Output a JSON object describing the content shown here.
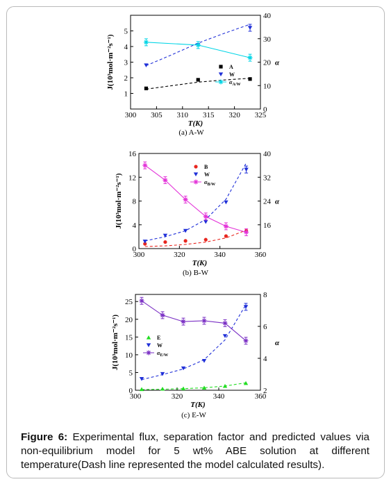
{
  "caption": {
    "label": "Figure 6:",
    "text": "Experimental flux, separation factor and predicted values via non-equilibrium model for 5 wt% ABE solution at different temperature(Dash line represented the model calculated results)."
  },
  "chart_data": [
    {
      "type": "line",
      "subtitle": "(a) A-W",
      "xlabel": "T(K)",
      "ylabel": "J(10³mol·m⁻²s⁻¹)",
      "y2label": "α",
      "xlim": [
        300,
        325
      ],
      "ylim": [
        0,
        6
      ],
      "y2lim": [
        0,
        40
      ],
      "xticks": [
        300,
        305,
        310,
        315,
        320,
        325
      ],
      "yticks": [
        1,
        2,
        3,
        4,
        5
      ],
      "y2ticks": [
        0,
        10,
        20,
        30,
        40
      ],
      "series": [
        {
          "name": "A",
          "axis": "left",
          "marker": "square",
          "color": "#000000",
          "x": [
            303,
            313,
            323
          ],
          "y": [
            1.32,
            1.87,
            1.92
          ]
        },
        {
          "name": "W",
          "axis": "left",
          "marker": "triangle-down",
          "color": "#1f2fd8",
          "x": [
            303,
            313,
            323
          ],
          "y": [
            2.8,
            4.1,
            5.2
          ]
        },
        {
          "name": "α_A/W",
          "axis": "right",
          "marker": "star",
          "color": "#00d5e6",
          "line": "solid",
          "x": [
            303,
            313,
            323
          ],
          "y": [
            28.5,
            27.3,
            21.9
          ]
        }
      ],
      "model_lines": [
        {
          "for": "A",
          "color": "#000000",
          "x": [
            303,
            308,
            313,
            318,
            323
          ],
          "y": [
            1.27,
            1.5,
            1.72,
            1.86,
            1.97
          ]
        },
        {
          "for": "W",
          "color": "#1f2fd8",
          "x": [
            303,
            308,
            313,
            318,
            323
          ],
          "y": [
            2.78,
            3.48,
            4.22,
            4.84,
            5.42
          ]
        }
      ]
    },
    {
      "type": "line",
      "subtitle": "(b) B-W",
      "xlabel": "T(K)",
      "ylabel": "J(10³mol·m⁻²s⁻¹)",
      "y2label": "α",
      "xlim": [
        300,
        360
      ],
      "ylim": [
        0,
        16
      ],
      "y2lim": [
        8,
        40
      ],
      "xticks": [
        300,
        320,
        340,
        360
      ],
      "yticks": [
        0,
        4,
        8,
        12,
        16
      ],
      "y2ticks": [
        16,
        24,
        32,
        40
      ],
      "series": [
        {
          "name": "B",
          "axis": "left",
          "marker": "circle",
          "color": "#e8261f",
          "x": [
            303,
            313,
            323,
            333,
            343,
            353
          ],
          "y": [
            0.8,
            1.1,
            1.3,
            1.5,
            2.1,
            3.0
          ]
        },
        {
          "name": "W",
          "axis": "left",
          "marker": "triangle-down",
          "color": "#1f2fd8",
          "x": [
            303,
            313,
            323,
            333,
            343,
            353
          ],
          "y": [
            1.2,
            2.2,
            3.0,
            4.5,
            7.8,
            13.3
          ]
        },
        {
          "name": "α_B/W",
          "axis": "right",
          "marker": "star",
          "color": "#e331d8",
          "line": "solid",
          "x": [
            303,
            313,
            323,
            333,
            343,
            353
          ],
          "y": [
            36.0,
            31.0,
            24.5,
            18.8,
            15.5,
            13.5
          ]
        }
      ],
      "model_lines": [
        {
          "for": "B",
          "color": "#e8261f",
          "x": [
            303,
            313,
            323,
            333,
            343,
            353
          ],
          "y": [
            0.35,
            0.45,
            0.7,
            1.1,
            1.8,
            3.1
          ]
        },
        {
          "for": "W",
          "color": "#1f2fd8",
          "x": [
            303,
            313,
            323,
            333,
            343,
            353
          ],
          "y": [
            1.3,
            2.0,
            3.0,
            4.9,
            8.3,
            14.4
          ]
        }
      ]
    },
    {
      "type": "line",
      "subtitle": "(c) E-W",
      "xlabel": "T(K)",
      "ylabel": "J(10³mol·m⁻²s⁻¹)",
      "y2label": "α",
      "xlim": [
        300,
        360
      ],
      "ylim": [
        0,
        27
      ],
      "y2lim": [
        2,
        8
      ],
      "xticks": [
        300,
        320,
        340,
        360
      ],
      "yticks": [
        0,
        5,
        10,
        15,
        20,
        25
      ],
      "y2ticks": [
        2,
        4,
        6,
        8
      ],
      "series": [
        {
          "name": "E",
          "axis": "left",
          "marker": "triangle-up",
          "color": "#22dd22",
          "x": [
            303,
            313,
            323,
            333,
            343,
            353
          ],
          "y": [
            0.3,
            0.4,
            0.5,
            0.7,
            1.2,
            2.0
          ]
        },
        {
          "name": "W",
          "axis": "left",
          "marker": "triangle-down",
          "color": "#1f2fd8",
          "x": [
            303,
            313,
            323,
            333,
            343,
            353
          ],
          "y": [
            3.2,
            4.6,
            6.2,
            8.3,
            15.3,
            23.5
          ]
        },
        {
          "name": "α_E/W",
          "axis": "right",
          "marker": "star",
          "color": "#7a2fc4",
          "line": "solid",
          "x": [
            303,
            313,
            323,
            333,
            343,
            353
          ],
          "y": [
            7.6,
            6.7,
            6.3,
            6.35,
            6.2,
            5.1
          ]
        }
      ],
      "model_lines": [
        {
          "for": "E",
          "color": "#22dd22",
          "x": [
            303,
            313,
            323,
            333,
            343,
            353
          ],
          "y": [
            0.2,
            0.3,
            0.45,
            0.7,
            1.2,
            2.1
          ]
        },
        {
          "for": "W",
          "color": "#1f2fd8",
          "x": [
            303,
            313,
            323,
            333,
            343,
            353
          ],
          "y": [
            3.0,
            4.4,
            6.0,
            8.6,
            14.2,
            24.1
          ]
        }
      ]
    }
  ]
}
